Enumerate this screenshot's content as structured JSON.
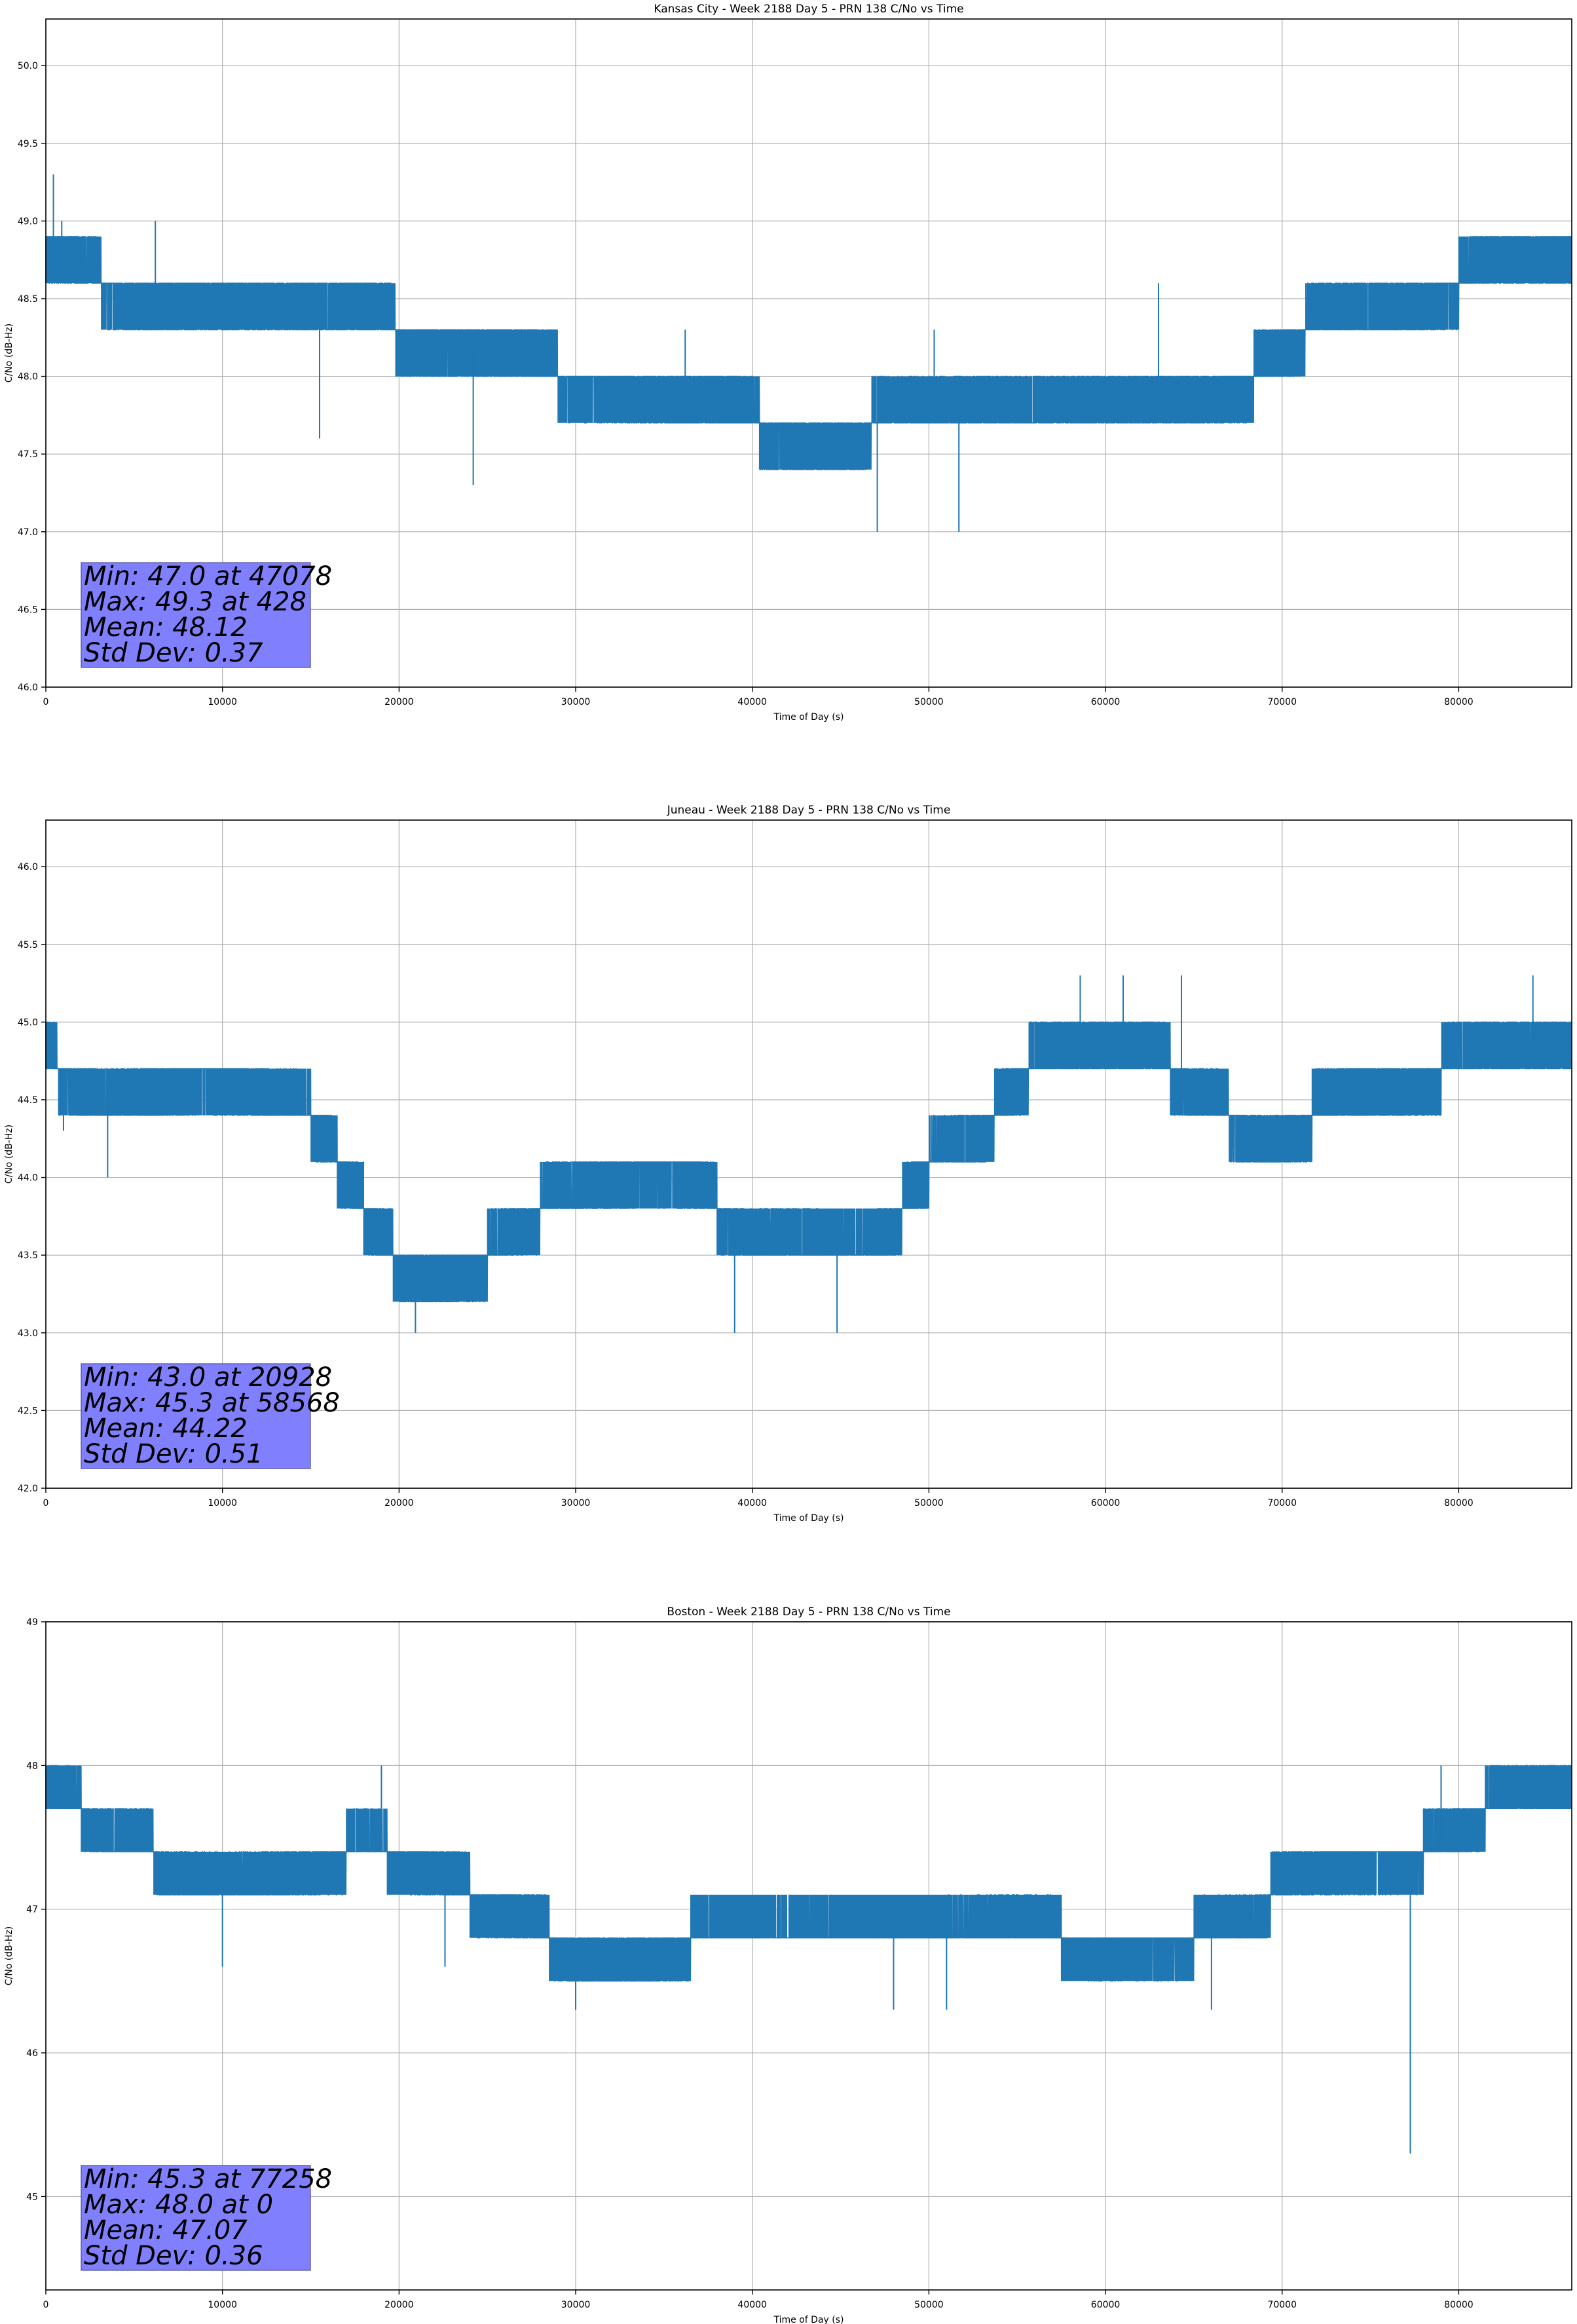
{
  "colors": {
    "series": "#1f77b4",
    "grid": "#b0b0b0",
    "stats_box": "#8080ff"
  },
  "chart_data": [
    {
      "type": "line",
      "title": "Kansas City - Week 2188 Day 5 - PRN 138 C/No vs Time",
      "xlabel": "Time of Day (s)",
      "ylabel": "C/No (dB-Hz)",
      "xlim": [
        0,
        86400
      ],
      "ylim": [
        46.0,
        50.3
      ],
      "xticks": [
        0,
        10000,
        20000,
        30000,
        40000,
        50000,
        60000,
        70000,
        80000
      ],
      "yticks": [
        46.0,
        46.5,
        47.0,
        47.5,
        48.0,
        48.5,
        49.0,
        49.5,
        50.0
      ],
      "ytick_labels": [
        "46.0",
        "46.5",
        "47.0",
        "47.5",
        "48.0",
        "48.5",
        "49.0",
        "49.5",
        "50.0"
      ],
      "grid": true,
      "quantum": 0.3,
      "profile": [
        [
          0,
          48.85
        ],
        [
          1800,
          48.8
        ],
        [
          3800,
          48.5
        ],
        [
          10000,
          48.45
        ],
        [
          19500,
          48.45
        ],
        [
          20000,
          48.2
        ],
        [
          27000,
          48.15
        ],
        [
          29000,
          48.0
        ],
        [
          35000,
          47.85
        ],
        [
          40000,
          47.8
        ],
        [
          41000,
          47.55
        ],
        [
          46000,
          47.55
        ],
        [
          47000,
          47.75
        ],
        [
          60000,
          47.8
        ],
        [
          66000,
          47.85
        ],
        [
          70000,
          48.1
        ],
        [
          72000,
          48.4
        ],
        [
          78000,
          48.45
        ],
        [
          80000,
          48.6
        ],
        [
          82000,
          48.75
        ],
        [
          86400,
          48.8
        ]
      ],
      "spikes": [
        [
          428,
          49.3
        ],
        [
          47078,
          47.0
        ],
        [
          51700,
          47.0
        ],
        [
          24200,
          47.3
        ],
        [
          15500,
          47.6
        ],
        [
          63000,
          48.6
        ],
        [
          36200,
          48.3
        ],
        [
          50300,
          48.3
        ],
        [
          900,
          49.0
        ],
        [
          6200,
          49.0
        ]
      ],
      "stats": [
        "Min: 47.0 at 47078",
        "Max: 49.3 at 428",
        "Mean: 48.12",
        "Std Dev: 0.37"
      ]
    },
    {
      "type": "line",
      "title": "Juneau - Week 2188 Day 5 - PRN 138 C/No vs Time",
      "xlabel": "Time of Day (s)",
      "ylabel": "C/No (dB-Hz)",
      "xlim": [
        0,
        86400
      ],
      "ylim": [
        42.0,
        46.3
      ],
      "xticks": [
        0,
        10000,
        20000,
        30000,
        40000,
        50000,
        60000,
        70000,
        80000
      ],
      "yticks": [
        42.0,
        42.5,
        43.0,
        43.5,
        44.0,
        44.5,
        45.0,
        45.5,
        46.0
      ],
      "ytick_labels": [
        "42.0",
        "42.5",
        "43.0",
        "43.5",
        "44.0",
        "44.5",
        "45.0",
        "45.5",
        "46.0"
      ],
      "grid": true,
      "quantum": 0.3,
      "profile": [
        [
          0,
          44.75
        ],
        [
          2000,
          44.6
        ],
        [
          3000,
          44.45
        ],
        [
          6000,
          44.5
        ],
        [
          8500,
          44.7
        ],
        [
          11000,
          44.6
        ],
        [
          13000,
          44.45
        ],
        [
          15000,
          44.4
        ],
        [
          16000,
          44.2
        ],
        [
          17500,
          43.9
        ],
        [
          19000,
          43.6
        ],
        [
          21000,
          43.3
        ],
        [
          23000,
          43.4
        ],
        [
          25000,
          43.5
        ],
        [
          27000,
          43.7
        ],
        [
          29000,
          43.9
        ],
        [
          32000,
          44.0
        ],
        [
          34000,
          44.1
        ],
        [
          37000,
          44.0
        ],
        [
          38500,
          43.7
        ],
        [
          40000,
          43.5
        ],
        [
          42000,
          43.6
        ],
        [
          44000,
          43.5
        ],
        [
          47000,
          43.5
        ],
        [
          48500,
          43.8
        ],
        [
          50000,
          44.1
        ],
        [
          52500,
          44.2
        ],
        [
          54000,
          44.45
        ],
        [
          55000,
          44.65
        ],
        [
          57000,
          44.8
        ],
        [
          63000,
          44.8
        ],
        [
          65000,
          44.5
        ],
        [
          67000,
          44.4
        ],
        [
          68500,
          44.2
        ],
        [
          70500,
          44.2
        ],
        [
          72000,
          44.45
        ],
        [
          75000,
          44.55
        ],
        [
          78000,
          44.6
        ],
        [
          80000,
          44.8
        ],
        [
          86400,
          44.8
        ]
      ],
      "spikes": [
        [
          20928,
          43.0
        ],
        [
          58568,
          45.3
        ],
        [
          61000,
          45.3
        ],
        [
          64300,
          45.3
        ],
        [
          84200,
          45.3
        ],
        [
          39000,
          43.0
        ],
        [
          44800,
          43.0
        ],
        [
          3500,
          44.0
        ],
        [
          1000,
          44.3
        ]
      ],
      "stats": [
        "Min: 43.0 at 20928",
        "Max: 45.3 at 58568",
        "Mean: 44.22",
        "Std Dev: 0.51"
      ]
    },
    {
      "type": "line",
      "title": "Boston - Week 2188 Day 5 - PRN 138 C/No vs Time",
      "xlabel": "Time of Day (s)",
      "ylabel": "C/No (dB-Hz)",
      "xlim": [
        0,
        86400
      ],
      "ylim": [
        44.35,
        49.0
      ],
      "xticks": [
        0,
        10000,
        20000,
        30000,
        40000,
        50000,
        60000,
        70000,
        80000
      ],
      "yticks": [
        45,
        46,
        47,
        48,
        49
      ],
      "ytick_labels": [
        "45",
        "46",
        "47",
        "48",
        "49"
      ],
      "grid": true,
      "quantum": 0.3,
      "profile": [
        [
          0,
          47.8
        ],
        [
          2000,
          47.7
        ],
        [
          3500,
          47.45
        ],
        [
          6000,
          47.45
        ],
        [
          6500,
          47.2
        ],
        [
          10000,
          47.1
        ],
        [
          13000,
          47.2
        ],
        [
          16000,
          47.35
        ],
        [
          18000,
          47.45
        ],
        [
          22000,
          47.3
        ],
        [
          24000,
          47.1
        ],
        [
          27000,
          46.95
        ],
        [
          30500,
          46.6
        ],
        [
          35000,
          46.6
        ],
        [
          36500,
          46.8
        ],
        [
          40000,
          46.8
        ],
        [
          50000,
          46.8
        ],
        [
          55000,
          46.85
        ],
        [
          60000,
          46.75
        ],
        [
          65000,
          46.8
        ],
        [
          69000,
          46.85
        ],
        [
          69500,
          47.2
        ],
        [
          73000,
          47.35
        ],
        [
          78000,
          47.4
        ],
        [
          80000,
          47.55
        ],
        [
          82000,
          47.75
        ],
        [
          86400,
          47.8
        ]
      ],
      "spikes": [
        [
          77258,
          45.3
        ],
        [
          19000,
          48.0
        ],
        [
          79000,
          48.0
        ],
        [
          10000,
          46.6
        ],
        [
          30000,
          46.3
        ],
        [
          48000,
          46.3
        ],
        [
          51000,
          46.3
        ],
        [
          66000,
          46.3
        ],
        [
          22600,
          46.6
        ]
      ],
      "stats": [
        "Min: 45.3 at 77258",
        "Max: 48.0 at 0",
        "Mean: 47.07",
        "Std Dev: 0.36"
      ]
    }
  ]
}
